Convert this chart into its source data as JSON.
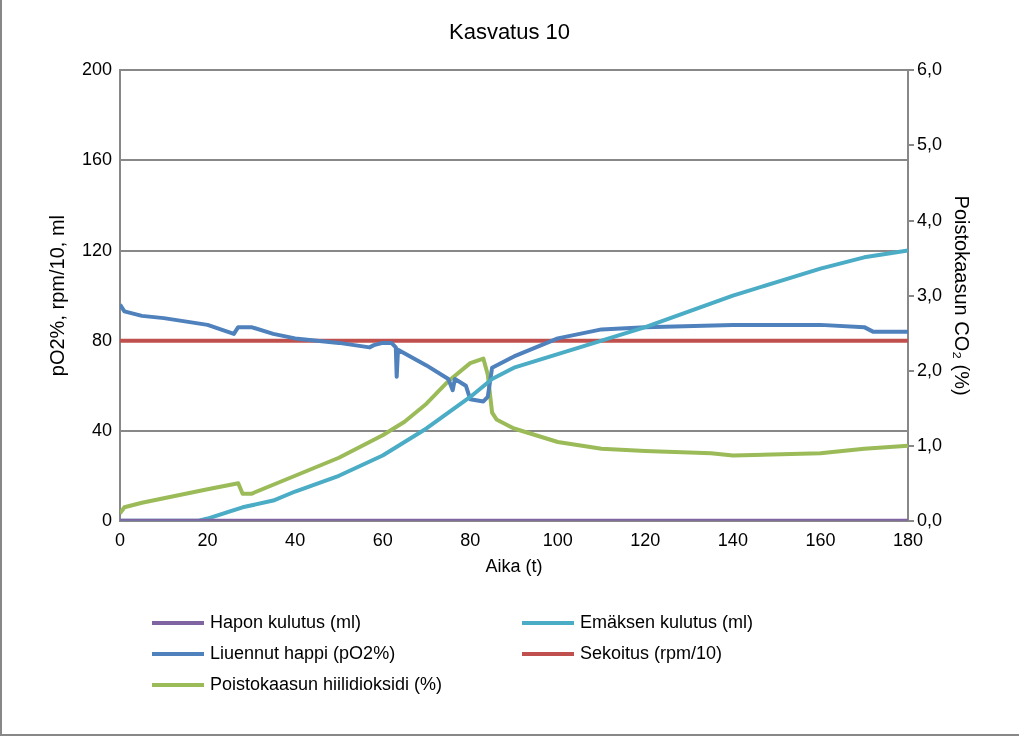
{
  "chart_data": {
    "type": "line",
    "title": "Kasvatus 10",
    "xlabel": "Aika (t)",
    "ylabel": "pO2%, rpm/10, ml",
    "y2label": "Poistokaasun CO₂ (%)",
    "xlim": [
      0,
      180
    ],
    "xticks": [
      0,
      20,
      40,
      60,
      80,
      100,
      120,
      140,
      160,
      180
    ],
    "ylim": [
      0,
      200
    ],
    "yticks": [
      0,
      40,
      80,
      120,
      160,
      200
    ],
    "y2lim": [
      0,
      6
    ],
    "y2ticks": [
      {
        "value": 0,
        "label": "0,0"
      },
      {
        "value": 1,
        "label": "1,0"
      },
      {
        "value": 2,
        "label": "2,0"
      },
      {
        "value": 3,
        "label": "3,0"
      },
      {
        "value": 4,
        "label": "4,0"
      },
      {
        "value": 5,
        "label": "5,0"
      },
      {
        "value": 6,
        "label": "6,0"
      }
    ],
    "grid": "y",
    "legend": "bottom",
    "marker": "none",
    "line_style": "solid",
    "series": [
      {
        "name": "Hapon kulutus (ml)",
        "color": "#8064a2",
        "x": [
          0,
          180
        ],
        "values": [
          0,
          0
        ]
      },
      {
        "name": "Emäksen kulutus (ml)",
        "color": "#4bacc6",
        "x": [
          0,
          18,
          20,
          28,
          35,
          40,
          50,
          60,
          70,
          80,
          85,
          90,
          100,
          110,
          120,
          130,
          140,
          150,
          160,
          170,
          180
        ],
        "values": [
          0,
          0,
          1,
          6,
          9,
          13,
          20,
          29,
          41,
          55,
          63,
          68,
          74,
          80,
          86,
          93,
          100,
          106,
          112,
          117,
          120
        ]
      },
      {
        "name": "Liuennut happi (pO2%)",
        "color": "#4f81bd",
        "x": [
          0,
          1,
          5,
          10,
          20,
          26,
          27,
          30,
          35,
          40,
          50,
          57,
          58,
          60,
          62,
          63,
          63.2,
          63.5,
          70,
          75,
          76,
          76.5,
          79,
          80,
          83,
          84,
          85,
          90,
          95,
          100,
          110,
          120,
          140,
          160,
          170,
          172,
          180
        ],
        "values": [
          96,
          93,
          91,
          90,
          87,
          83,
          86,
          86,
          83,
          81,
          79,
          77,
          78,
          79,
          79,
          77,
          64,
          76,
          69,
          63,
          58,
          63,
          60,
          54,
          53,
          55,
          68,
          73,
          77,
          81,
          85,
          86,
          87,
          87,
          86,
          84,
          84
        ]
      },
      {
        "name": "Sekoitus (rpm/10)",
        "color": "#c0504d",
        "x": [
          0,
          180
        ],
        "values": [
          80,
          80
        ]
      },
      {
        "name": "Poistokaasun hiilidioksidi (%)",
        "color": "#9bbb59",
        "axis": "y2",
        "x": [
          0,
          1,
          5,
          10,
          20,
          27,
          28,
          30,
          35,
          40,
          50,
          60,
          65,
          70,
          75,
          80,
          83,
          84,
          85,
          86,
          90,
          100,
          110,
          120,
          135,
          140,
          160,
          170,
          180
        ],
        "values": [
          0.1,
          0.18,
          0.24,
          0.3,
          0.42,
          0.5,
          0.36,
          0.36,
          0.48,
          0.6,
          0.84,
          1.14,
          1.32,
          1.56,
          1.86,
          2.1,
          2.16,
          1.95,
          1.44,
          1.35,
          1.23,
          1.05,
          0.96,
          0.93,
          0.9,
          0.87,
          0.9,
          0.96,
          1.0
        ]
      }
    ]
  }
}
